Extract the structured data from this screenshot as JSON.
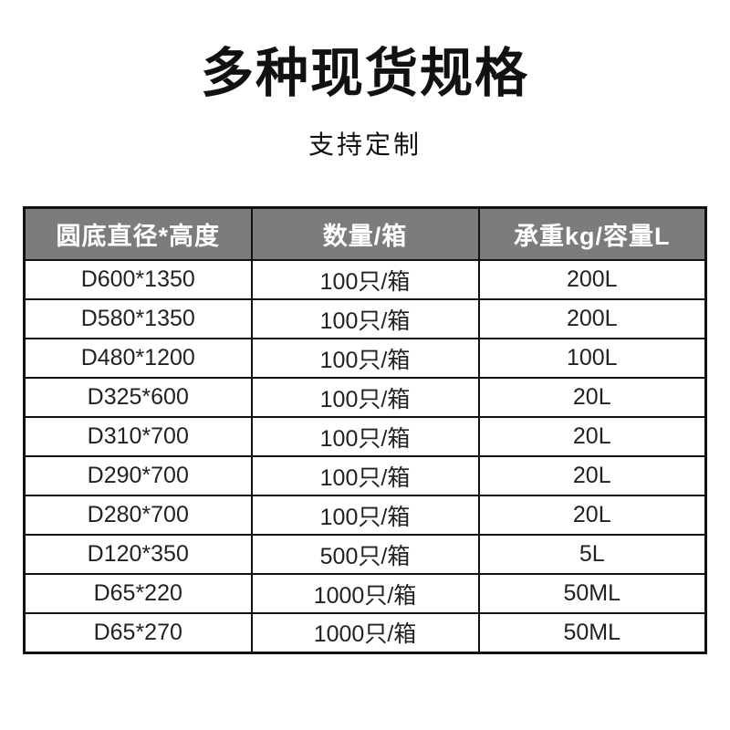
{
  "page": {
    "title": "多种现货规格",
    "subtitle": "支持定制"
  },
  "table": {
    "headers": [
      "圆底直径*高度",
      "数量/箱",
      "承重kg/容量L"
    ],
    "rows": [
      [
        "D600*1350",
        "100只/箱",
        "200L"
      ],
      [
        "D580*1350",
        "100只/箱",
        "200L"
      ],
      [
        "D480*1200",
        "100只/箱",
        "100L"
      ],
      [
        "D325*600",
        "100只/箱",
        "20L"
      ],
      [
        "D310*700",
        "100只/箱",
        "20L"
      ],
      [
        "D290*700",
        "100只/箱",
        "20L"
      ],
      [
        "D280*700",
        "100只/箱",
        "20L"
      ],
      [
        "D120*350",
        "500只/箱",
        "5L"
      ],
      [
        "D65*220",
        "1000只/箱",
        "50ML"
      ],
      [
        "D65*270",
        "1000只/箱",
        "50ML"
      ]
    ],
    "colors": {
      "header_bg": "#7c7c7c",
      "header_text": "#ffffff",
      "border": "#111111",
      "cell_text": "#222222"
    }
  }
}
